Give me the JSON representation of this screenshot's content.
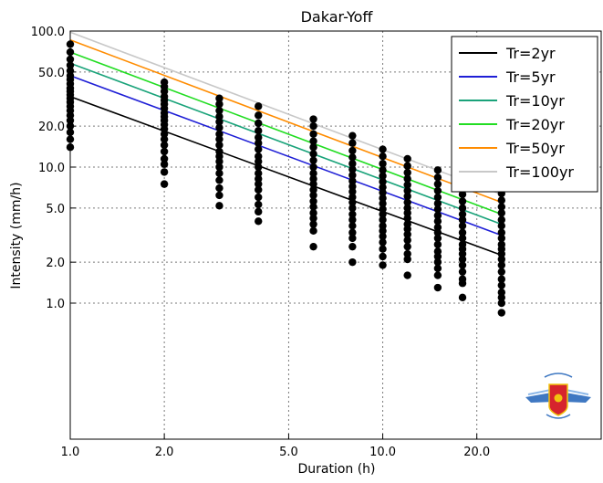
{
  "chart_data": {
    "type": "scatter",
    "title": "Dakar-Yoff",
    "xlabel": "Duration (h)",
    "ylabel": "Intensity (mm/h)",
    "xscale": "log",
    "yscale": "log",
    "xlim": [
      1.0,
      50.0
    ],
    "ylim": [
      0.1,
      100.0
    ],
    "grid": true,
    "legend_position": "top-right",
    "xticks": [
      1.0,
      2.0,
      5.0,
      10.0,
      20.0
    ],
    "xtick_labels": [
      "1.0",
      "2.0",
      "5.0",
      "10.0",
      "20.0"
    ],
    "yticks": [
      1.0,
      2.0,
      5.0,
      10.0,
      20.0,
      50.0,
      100.0
    ],
    "ytick_labels": [
      "1.0",
      "2.0",
      "5.0",
      "10.0",
      "20.0",
      "50.0",
      "100.0"
    ],
    "series": [
      {
        "name": "Tr=2yr",
        "color": "#000000",
        "x": [
          1.0,
          24.0
        ],
        "y": [
          33.0,
          2.25
        ]
      },
      {
        "name": "Tr=5yr",
        "color": "#1f1fd6",
        "x": [
          1.0,
          24.0
        ],
        "y": [
          47.0,
          3.15
        ]
      },
      {
        "name": "Tr=10yr",
        "color": "#1aa37a",
        "x": [
          1.0,
          24.0
        ],
        "y": [
          58.0,
          3.8
        ]
      },
      {
        "name": "Tr=20yr",
        "color": "#22dd22",
        "x": [
          1.0,
          24.0
        ],
        "y": [
          70.0,
          4.5
        ]
      },
      {
        "name": "Tr=50yr",
        "color": "#ff8c00",
        "x": [
          1.0,
          24.0
        ],
        "y": [
          86.0,
          5.5
        ]
      },
      {
        "name": "Tr=100yr",
        "color": "#c8c8c8",
        "x": [
          1.0,
          24.0
        ],
        "y": [
          98.0,
          6.3
        ]
      }
    ],
    "observations": [
      {
        "x": 1.0,
        "y": [
          80,
          70,
          62,
          56,
          51,
          47,
          44,
          41,
          38,
          36,
          34,
          32,
          30,
          28,
          26,
          24,
          22,
          20,
          18,
          16,
          14
        ]
      },
      {
        "x": 2.0,
        "y": [
          42,
          39,
          36,
          33,
          31,
          29,
          27,
          25,
          23.5,
          22,
          20.5,
          19,
          17.5,
          16,
          14.5,
          13,
          11.5,
          10.5,
          9.2,
          7.5
        ]
      },
      {
        "x": 3.0,
        "y": [
          32,
          29,
          26,
          23.5,
          21.5,
          19.5,
          17.5,
          16,
          14.5,
          13,
          12,
          11,
          10,
          9,
          8,
          7,
          6.2,
          5.2
        ]
      },
      {
        "x": 4.0,
        "y": [
          28,
          24,
          21,
          18.5,
          16.5,
          15,
          13.5,
          12,
          11,
          10,
          9,
          8.2,
          7.5,
          6.8,
          6,
          5.3,
          4.7,
          4.0
        ]
      },
      {
        "x": 6.0,
        "y": [
          22.5,
          20,
          17.5,
          15.5,
          14,
          12.5,
          11.2,
          10,
          9,
          8.2,
          7.5,
          6.8,
          6.2,
          5.6,
          5.1,
          4.6,
          4.2,
          3.8,
          3.4,
          2.6
        ]
      },
      {
        "x": 8.0,
        "y": [
          17,
          15,
          13.2,
          11.8,
          10.6,
          9.6,
          8.7,
          7.9,
          7.2,
          6.6,
          6,
          5.5,
          5,
          4.5,
          4.1,
          3.7,
          3.3,
          3,
          2.6,
          2.0
        ]
      },
      {
        "x": 10.0,
        "y": [
          13.5,
          12,
          10.6,
          9.5,
          8.6,
          7.8,
          7.1,
          6.5,
          5.9,
          5.4,
          4.9,
          4.5,
          4.1,
          3.7,
          3.4,
          3.1,
          2.8,
          2.5,
          2.2,
          1.9
        ]
      },
      {
        "x": 12.0,
        "y": [
          11.5,
          10.2,
          9.1,
          8.2,
          7.4,
          6.7,
          6.1,
          5.5,
          5,
          4.6,
          4.2,
          3.8,
          3.5,
          3.2,
          2.9,
          2.6,
          2.3,
          2.1,
          1.6
        ]
      },
      {
        "x": 15.0,
        "y": [
          9.5,
          8.4,
          7.5,
          6.7,
          6,
          5.4,
          4.9,
          4.4,
          4,
          3.6,
          3.3,
          3,
          2.7,
          2.4,
          2.2,
          2,
          1.8,
          1.6,
          1.3
        ]
      },
      {
        "x": 18.0,
        "y": [
          8,
          7.1,
          6.3,
          5.6,
          5,
          4.5,
          4.1,
          3.7,
          3.3,
          3,
          2.7,
          2.5,
          2.3,
          2.1,
          1.9,
          1.7,
          1.5,
          1.4,
          1.1
        ]
      },
      {
        "x": 24.0,
        "y": [
          6.4,
          5.7,
          5.1,
          4.6,
          4.1,
          3.7,
          3.3,
          3,
          2.7,
          2.5,
          2.3,
          2.1,
          1.9,
          1.7,
          1.5,
          1.35,
          1.2,
          1.1,
          1.0,
          0.85
        ]
      }
    ]
  }
}
